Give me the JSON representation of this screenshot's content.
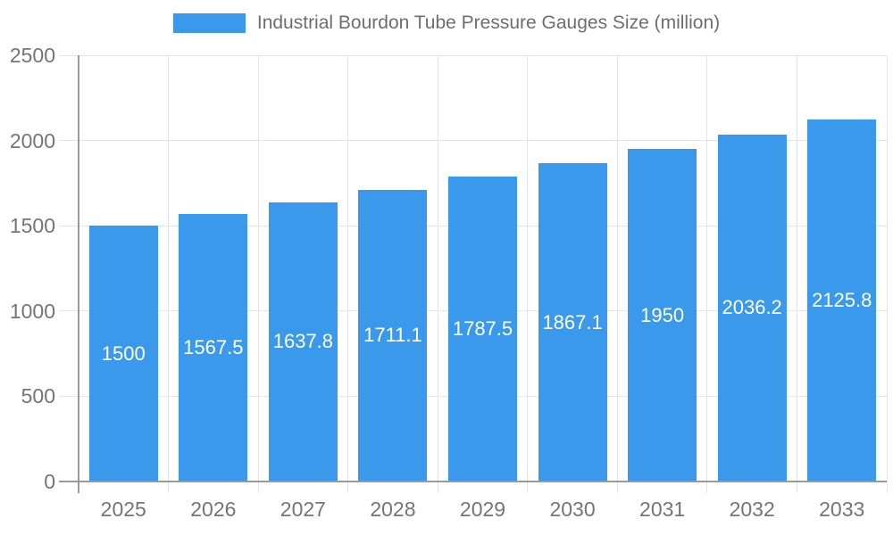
{
  "legend": {
    "label": "Industrial Bourdon Tube Pressure Gauges Size (million)"
  },
  "chart_data": {
    "type": "bar",
    "title": "Industrial Bourdon Tube Pressure Gauges Size (million)",
    "categories": [
      "2025",
      "2026",
      "2027",
      "2028",
      "2029",
      "2030",
      "2031",
      "2032",
      "2033"
    ],
    "series": [
      {
        "name": "Industrial Bourdon Tube Pressure Gauges Size (million)",
        "values": [
          1500,
          1567.5,
          1637.8,
          1711.1,
          1787.5,
          1867.1,
          1950,
          2036.2,
          2125.8
        ]
      }
    ],
    "value_labels": [
      "1500",
      "1567.5",
      "1637.8",
      "1711.1",
      "1787.5",
      "1867.1",
      "1950",
      "2036.2",
      "2125.8"
    ],
    "xlabel": "",
    "ylabel": "",
    "ylim": [
      0,
      2500
    ],
    "yticks": [
      0,
      500,
      1000,
      1500,
      2000,
      2500
    ],
    "grid": true,
    "legend_position": "top-center",
    "value_label_position": "inside-middle",
    "colors": {
      "bar": "#3b99ec",
      "grid_line": "#e4e4e4",
      "axis_line": "#9a9a9a",
      "tick_label": "#757575",
      "legend_text": "#6e6e6e",
      "value_label": "#ffffff",
      "background": "#ffffff"
    }
  }
}
